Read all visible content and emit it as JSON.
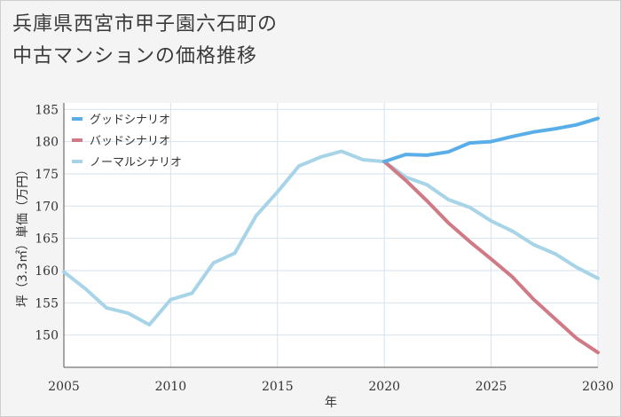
{
  "title_line1": "兵庫県西宮市甲子園六石町の",
  "title_line2": "中古マンションの価格推移",
  "chart_data": {
    "type": "line",
    "xlabel": "年",
    "ylabel": "坪（3.3㎡）単価（万円）",
    "xlim": [
      2005,
      2030
    ],
    "ylim": [
      145,
      186
    ],
    "x_ticks": [
      2005,
      2010,
      2015,
      2020,
      2025,
      2030
    ],
    "y_ticks": [
      150,
      155,
      160,
      165,
      170,
      175,
      180,
      185
    ],
    "grid": true,
    "legend_position": "top-left",
    "series": [
      {
        "name": "グッドシナリオ",
        "color": "#5aaee8",
        "x": [
          2020,
          2021,
          2022,
          2023,
          2024,
          2025,
          2026,
          2027,
          2028,
          2029,
          2030
        ],
        "y": [
          176.9,
          178.0,
          177.9,
          178.4,
          179.8,
          180.0,
          180.8,
          181.5,
          182.0,
          182.6,
          183.6
        ]
      },
      {
        "name": "バッドシナリオ",
        "color": "#d07a85",
        "x": [
          2020,
          2021,
          2022,
          2023,
          2024,
          2025,
          2026,
          2027,
          2028,
          2029,
          2030
        ],
        "y": [
          176.9,
          174.0,
          170.8,
          167.4,
          164.5,
          161.8,
          159.0,
          155.5,
          152.5,
          149.5,
          147.3
        ]
      },
      {
        "name": "ノーマルシナリオ",
        "color": "#a8d4e8",
        "x": [
          2005,
          2006,
          2007,
          2008,
          2009,
          2010,
          2011,
          2012,
          2013,
          2014,
          2015,
          2016,
          2017,
          2018,
          2019,
          2020,
          2021,
          2022,
          2023,
          2024,
          2025,
          2026,
          2027,
          2028,
          2029,
          2030
        ],
        "y": [
          159.8,
          157.2,
          154.2,
          153.4,
          151.6,
          155.5,
          156.5,
          161.2,
          162.7,
          168.5,
          172.2,
          176.2,
          177.6,
          178.5,
          177.2,
          176.9,
          174.5,
          173.3,
          171.0,
          169.8,
          167.7,
          166.1,
          164.0,
          162.6,
          160.5,
          158.8
        ]
      }
    ]
  }
}
